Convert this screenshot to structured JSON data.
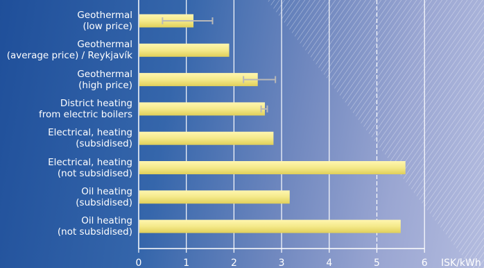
{
  "chart_data": {
    "type": "bar",
    "orientation": "horizontal",
    "categories": [
      [
        "Geothermal",
        "(low price)"
      ],
      [
        "Geothermal",
        "(average price) / Reykjavík"
      ],
      [
        "Geothermal",
        "(high price)"
      ],
      [
        "District heating",
        "from electric boilers"
      ],
      [
        "Electrical, heating",
        "(subsidised)"
      ],
      [
        "Electrical, heating",
        "(not subsidised)"
      ],
      [
        "Oil heating",
        "(subsidised)"
      ],
      [
        "Oil heating",
        "(not subsidised)"
      ]
    ],
    "values": [
      1.15,
      1.9,
      2.5,
      2.65,
      2.83,
      5.6,
      3.17,
      5.5
    ],
    "error_ranges": [
      [
        0.5,
        1.55
      ],
      null,
      [
        2.2,
        2.87
      ],
      [
        2.57,
        2.7
      ],
      null,
      null,
      null,
      null
    ],
    "xlim": [
      0,
      6
    ],
    "xticks": [
      0,
      1,
      2,
      3,
      4,
      5,
      6
    ],
    "xlabel": "ISK/kWh",
    "ylabel": "",
    "title": "",
    "grid": true,
    "bar_color": "#f4e98a",
    "error_bar_color": "#b8b8b8",
    "gridline_color": "#ffffff"
  }
}
